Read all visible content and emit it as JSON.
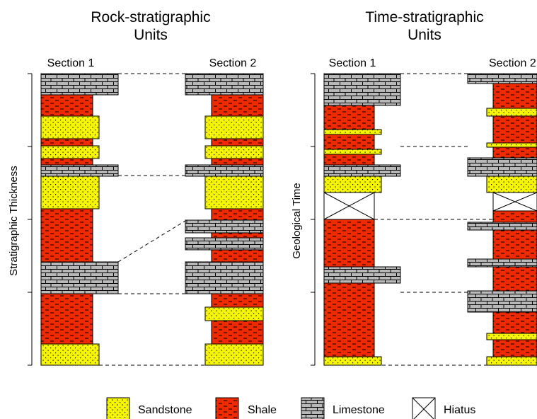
{
  "panels": {
    "rock": {
      "title_line1": "Rock-stratigraphic",
      "title_line2": "Units",
      "axis_label": "Stratigraphic Thickness",
      "section1_label": "Section 1",
      "section2_label": "Section 2"
    },
    "time": {
      "title_line1": "Time-stratigraphic",
      "title_line2": "Units",
      "axis_label": "Geological Time",
      "section1_label": "Section 1",
      "section2_label": "Section 2"
    }
  },
  "legend": {
    "sandstone": "Sandstone",
    "shale": "Shale",
    "limestone": "Limestone",
    "hiatus": "Hiatus"
  },
  "colors": {
    "sandstone": "#f6f500",
    "shale": "#f02a00",
    "limestone": "#b8b8b8",
    "hiatus": "#ffffff",
    "outline": "#000000"
  }
}
